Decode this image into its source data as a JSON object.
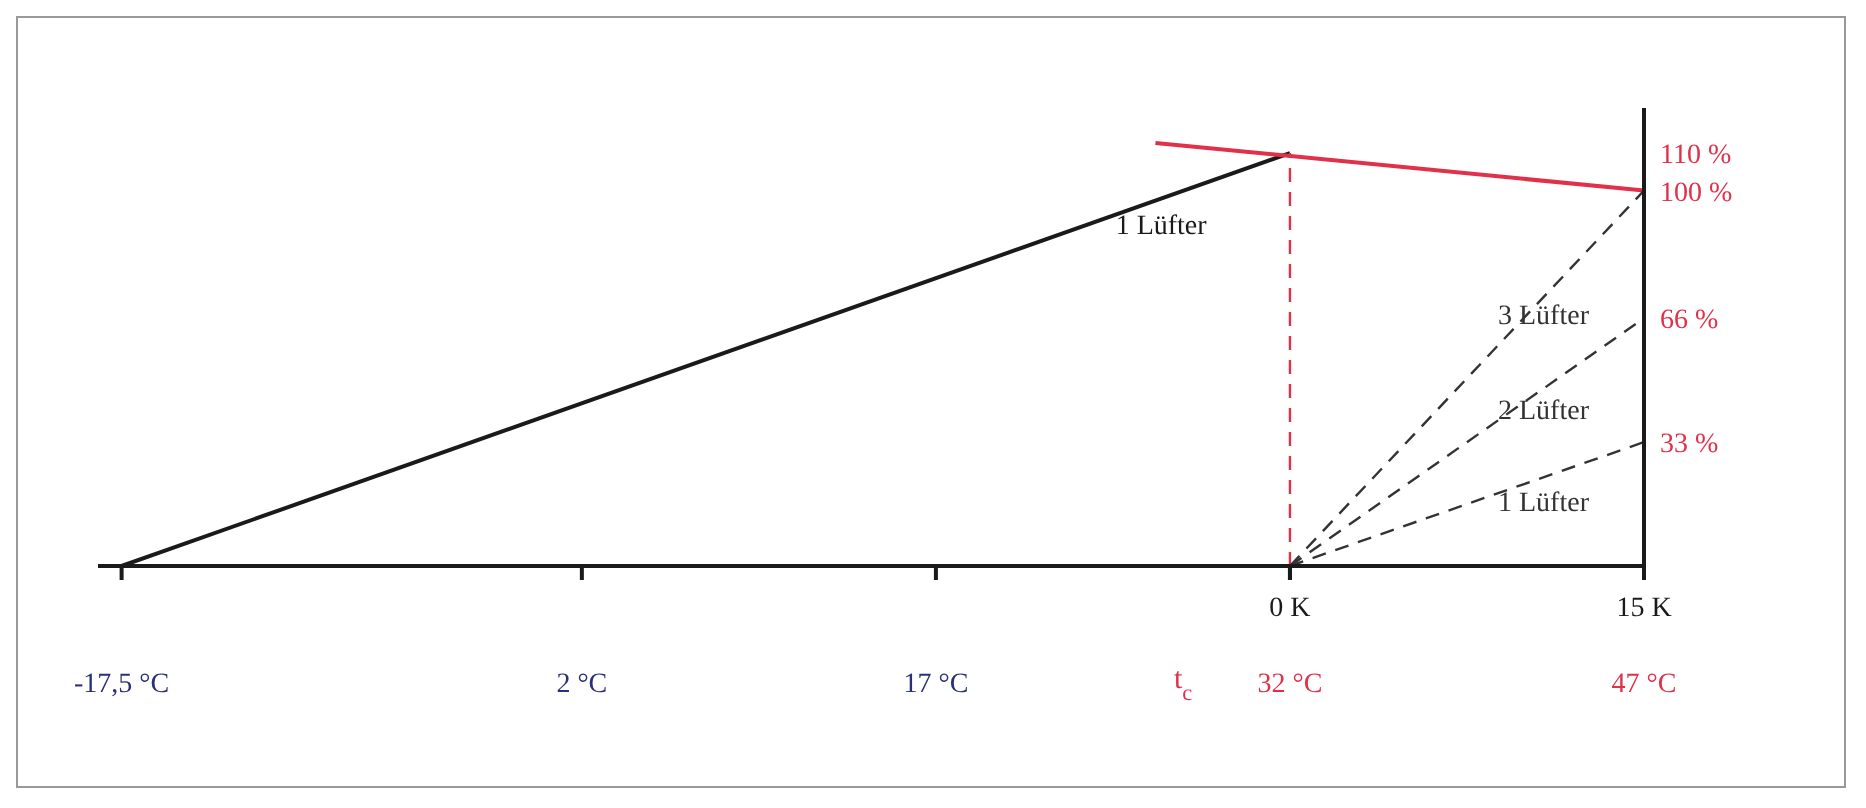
{
  "chart_data": {
    "type": "line",
    "xlabel": "t$_{c}$",
    "xlim": [
      -18.5,
      47
    ],
    "xticks": [
      {
        "value": -17.5,
        "label": "-17,5 °C"
      },
      {
        "value": 2,
        "label": "2 °C"
      },
      {
        "value": 17,
        "label": "17 °C"
      },
      {
        "value": 32,
        "label": "32 °C"
      },
      {
        "value": 47,
        "label": "47 °C"
      }
    ],
    "x2lim": [
      -50.5,
      15
    ],
    "x2ticks": [
      {
        "value": 0,
        "label": "0 K"
      },
      {
        "value": 15,
        "label": "15 K"
      }
    ],
    "ylim": [
      0,
      122
    ],
    "yticks": [
      {
        "value": 33,
        "label": "33 %"
      },
      {
        "value": 66,
        "label": "66 %"
      },
      {
        "value": 100,
        "label": "100 %"
      },
      {
        "value": 110,
        "label": "110 %"
      }
    ],
    "grid": false,
    "legend": false,
    "marker": "none",
    "series": [
      {
        "name": "1 Lüfter",
        "x": [
          -17.5,
          32
        ],
        "values": [
          0,
          110
        ],
        "color": "#1a1a1a"
      },
      {
        "x": [
          26.3,
          47
        ],
        "values": [
          112.7,
          100
        ],
        "color": "#e0304a"
      },
      {
        "x": [
          32,
          32
        ],
        "values": [
          0,
          110
        ],
        "color": "#e0304a",
        "line_style": "dashed"
      },
      {
        "name": "1 Lüfter",
        "x": [
          32,
          47
        ],
        "values": [
          0,
          33
        ],
        "color": "#333333",
        "line_style": "dashed"
      },
      {
        "name": "2 Lüfter",
        "x": [
          32,
          47
        ],
        "values": [
          0,
          66
        ],
        "color": "#333333",
        "line_style": "dashed"
      },
      {
        "name": "3 Lüfter",
        "x": [
          32,
          47
        ],
        "values": [
          0,
          100
        ],
        "color": "#333333",
        "line_style": "dashed"
      }
    ]
  }
}
